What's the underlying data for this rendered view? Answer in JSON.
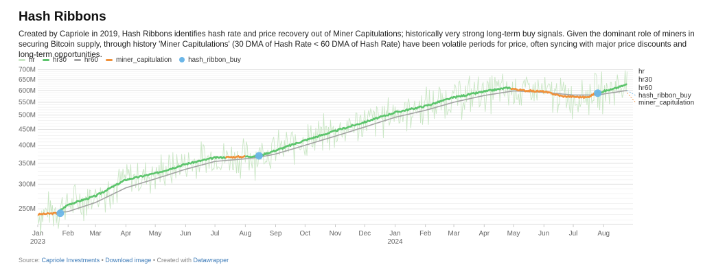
{
  "header": {
    "title": "Hash Ribbons",
    "description": "Created by Capriole in 2019, Hash Ribbons identifies hash rate and price recovery out of Miner Capitulations; historically very strong long-term buy signals. Given the dominant role of miners in securing Bitcoin supply, through history 'Miner Capitulations' (30 DMA of Hash Rate < 60 DMA of Hash Rate) have been volatile periods for price, often syncing with major price discounts and long-term opportunities."
  },
  "legend": [
    {
      "label": "hr",
      "color": "#c9e6c4",
      "kind": "line"
    },
    {
      "label": "hr30",
      "color": "#5cc46c",
      "kind": "line"
    },
    {
      "label": "hr60",
      "color": "#a3a3a3",
      "kind": "line"
    },
    {
      "label": "miner_capitulation",
      "color": "#f0913a",
      "kind": "line"
    },
    {
      "label": "hash_ribbon_buy",
      "color": "#6bb6e8",
      "kind": "dot"
    }
  ],
  "footer": {
    "source_label": "Source:",
    "source_link": "Capriole Investments",
    "sep1": "•",
    "download_link": "Download image",
    "sep2": "• Created with",
    "tool_link": "Datawrapper"
  },
  "chart_data": {
    "type": "line",
    "title": "Hash Ribbons",
    "y_scale": "log",
    "y_ticks": [
      250,
      300,
      350,
      400,
      450,
      500,
      550,
      600,
      650,
      700
    ],
    "y_tick_labels": [
      "250M",
      "300M",
      "350M",
      "400M",
      "450M",
      "500M",
      "550M",
      "600M",
      "650M",
      "700M"
    ],
    "ylim": [
      225,
      705
    ],
    "xlim": [
      "2023-01-01",
      "2024-08-31"
    ],
    "x_ticks": [
      "2023-01-01",
      "2023-02-01",
      "2023-03-01",
      "2023-04-01",
      "2023-05-01",
      "2023-06-01",
      "2023-07-01",
      "2023-08-01",
      "2023-09-01",
      "2023-10-01",
      "2023-11-01",
      "2023-12-01",
      "2024-01-01",
      "2024-02-01",
      "2024-03-01",
      "2024-04-01",
      "2024-05-01",
      "2024-06-01",
      "2024-07-01",
      "2024-08-01"
    ],
    "x_tick_labels": [
      "Jan",
      "Feb",
      "Mar",
      "Apr",
      "May",
      "Jun",
      "Jul",
      "Aug",
      "Sep",
      "Oct",
      "Nov",
      "Dec",
      "Jan",
      "Feb",
      "Mar",
      "Apr",
      "May",
      "Jun",
      "Jul",
      "Aug"
    ],
    "x_year_labels": [
      {
        "x": "2023-01-01",
        "label": "2023"
      },
      {
        "x": "2024-01-01",
        "label": "2024"
      }
    ],
    "grid": "horizontal",
    "series_key_points": {
      "hr30": [
        [
          "2023-01-01",
          240
        ],
        [
          "2023-01-20",
          242
        ],
        [
          "2023-02-01",
          258
        ],
        [
          "2023-03-01",
          275
        ],
        [
          "2023-04-01",
          310
        ],
        [
          "2023-05-01",
          325
        ],
        [
          "2023-06-01",
          348
        ],
        [
          "2023-07-01",
          365
        ],
        [
          "2023-08-01",
          368
        ],
        [
          "2023-08-15",
          370
        ],
        [
          "2023-09-01",
          385
        ],
        [
          "2023-10-01",
          415
        ],
        [
          "2023-11-01",
          445
        ],
        [
          "2023-12-01",
          475
        ],
        [
          "2024-01-01",
          510
        ],
        [
          "2024-02-01",
          535
        ],
        [
          "2024-03-01",
          570
        ],
        [
          "2024-04-01",
          595
        ],
        [
          "2024-04-25",
          612
        ],
        [
          "2024-05-10",
          600
        ],
        [
          "2024-06-01",
          595
        ],
        [
          "2024-06-20",
          575
        ],
        [
          "2024-07-15",
          570
        ],
        [
          "2024-07-25",
          590
        ],
        [
          "2024-08-10",
          605
        ],
        [
          "2024-08-25",
          628
        ]
      ],
      "hr60": [
        [
          "2023-01-01",
          240
        ],
        [
          "2023-02-01",
          245
        ],
        [
          "2023-03-01",
          262
        ],
        [
          "2023-04-01",
          292
        ],
        [
          "2023-05-01",
          312
        ],
        [
          "2023-06-01",
          335
        ],
        [
          "2023-07-01",
          355
        ],
        [
          "2023-08-01",
          362
        ],
        [
          "2023-08-15",
          366
        ],
        [
          "2023-09-01",
          375
        ],
        [
          "2023-10-01",
          400
        ],
        [
          "2023-11-01",
          428
        ],
        [
          "2023-12-01",
          458
        ],
        [
          "2024-01-01",
          492
        ],
        [
          "2024-02-01",
          518
        ],
        [
          "2024-03-01",
          550
        ],
        [
          "2024-04-01",
          578
        ],
        [
          "2024-05-01",
          598
        ],
        [
          "2024-06-01",
          592
        ],
        [
          "2024-07-01",
          580
        ],
        [
          "2024-07-25",
          580
        ],
        [
          "2024-08-25",
          600
        ]
      ],
      "hr": [
        [
          "2023-01-01",
          240
        ],
        [
          "2023-02-01",
          258
        ],
        [
          "2023-03-01",
          275
        ],
        [
          "2023-04-01",
          310
        ],
        [
          "2023-05-01",
          325
        ],
        [
          "2023-06-01",
          348
        ],
        [
          "2023-07-01",
          365
        ],
        [
          "2023-08-01",
          368
        ],
        [
          "2023-09-01",
          385
        ],
        [
          "2023-10-01",
          415
        ],
        [
          "2023-11-01",
          445
        ],
        [
          "2023-12-01",
          475
        ],
        [
          "2024-01-01",
          510
        ],
        [
          "2024-02-01",
          535
        ],
        [
          "2024-03-01",
          570
        ],
        [
          "2024-04-01",
          595
        ],
        [
          "2024-05-01",
          602
        ],
        [
          "2024-06-01",
          590
        ],
        [
          "2024-07-01",
          572
        ],
        [
          "2024-08-01",
          600
        ],
        [
          "2024-08-25",
          628
        ]
      ],
      "hr_noise_amplitude_pct": 12
    },
    "miner_capitulation_periods": [
      {
        "start": "2023-01-01",
        "end": "2023-01-22"
      },
      {
        "start": "2023-07-12",
        "end": "2023-07-31"
      },
      {
        "start": "2024-04-28",
        "end": "2024-07-24"
      }
    ],
    "hash_ribbon_buy": [
      {
        "x": "2023-01-24",
        "y": 242
      },
      {
        "x": "2023-08-15",
        "y": 370
      },
      {
        "x": "2024-07-26",
        "y": 588
      }
    ],
    "end_labels": [
      "hr",
      "hr30",
      "hr60",
      "hash_ribbon_buy",
      "miner_capitulation"
    ]
  }
}
